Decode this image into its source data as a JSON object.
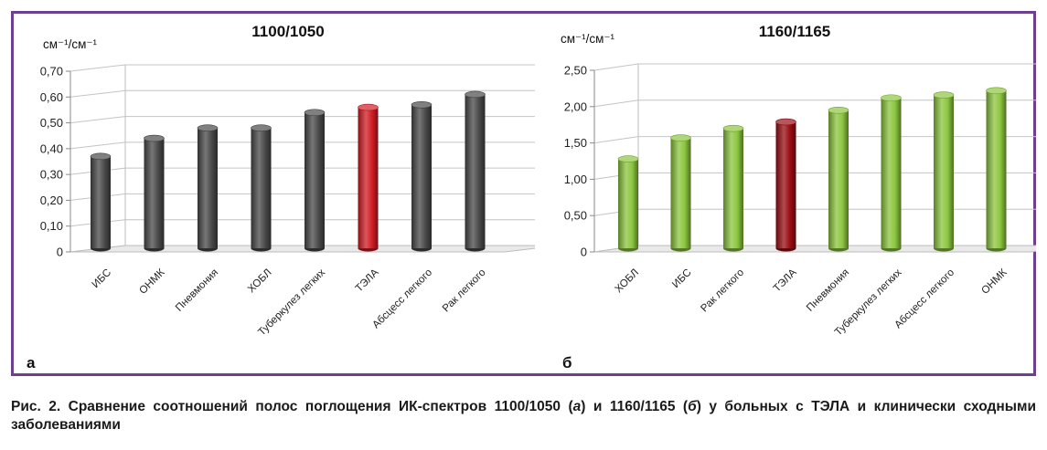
{
  "colors": {
    "frame": "#6f3f8f",
    "gray_bar": "#4a4a4a",
    "red_bar": "#d11d24",
    "dark_red_bar": "#9b0e14",
    "green_bar": "#8cc63f"
  },
  "chart_data": [
    {
      "type": "bar",
      "title": "1100/1050",
      "ylabel": "см⁻¹/см⁻¹",
      "panel_label": "а",
      "categories": [
        "ИБС",
        "ОНМК",
        "Пневмония",
        "ХОБЛ",
        "Туберкулез легких",
        "ТЭЛА",
        "Абсцесс легкого",
        "Рак легкого"
      ],
      "values": [
        0.37,
        0.44,
        0.48,
        0.48,
        0.54,
        0.56,
        0.57,
        0.61
      ],
      "bar_colors": [
        "#4a4a4a",
        "#4a4a4a",
        "#4a4a4a",
        "#4a4a4a",
        "#4a4a4a",
        "#d11d24",
        "#4a4a4a",
        "#4a4a4a"
      ],
      "yticks": [
        "0",
        "0,10",
        "0,20",
        "0,30",
        "0,40",
        "0,50",
        "0,60",
        "0,70"
      ],
      "ylim": [
        0,
        0.7
      ],
      "grid": true
    },
    {
      "type": "bar",
      "title": "1160/1165",
      "ylabel": "см⁻¹/см⁻¹",
      "panel_label": "б",
      "categories": [
        "ХОБЛ",
        "ИБС",
        "Рак легкого",
        "ТЭЛА",
        "Пневмония",
        "Туберкулез легких",
        "Абсцесс легкого",
        "ОНМК"
      ],
      "values": [
        1.28,
        1.57,
        1.7,
        1.79,
        1.95,
        2.12,
        2.16,
        2.22
      ],
      "bar_colors": [
        "#8cc63f",
        "#8cc63f",
        "#8cc63f",
        "#9b0e14",
        "#8cc63f",
        "#8cc63f",
        "#8cc63f",
        "#8cc63f"
      ],
      "yticks": [
        "0",
        "0,50",
        "1,00",
        "1,50",
        "2,00",
        "2,50"
      ],
      "ylim": [
        0,
        2.5
      ],
      "grid": true
    }
  ],
  "caption": {
    "part1": "Рис. 2. Сравнение соотношений полос поглощения ИК-спектров 1100/1050 (",
    "a": "а",
    "part2": ") и 1160/1165 (",
    "b": "б",
    "part3": ") у больных с ТЭЛА и клинически сходными заболеваниями"
  }
}
